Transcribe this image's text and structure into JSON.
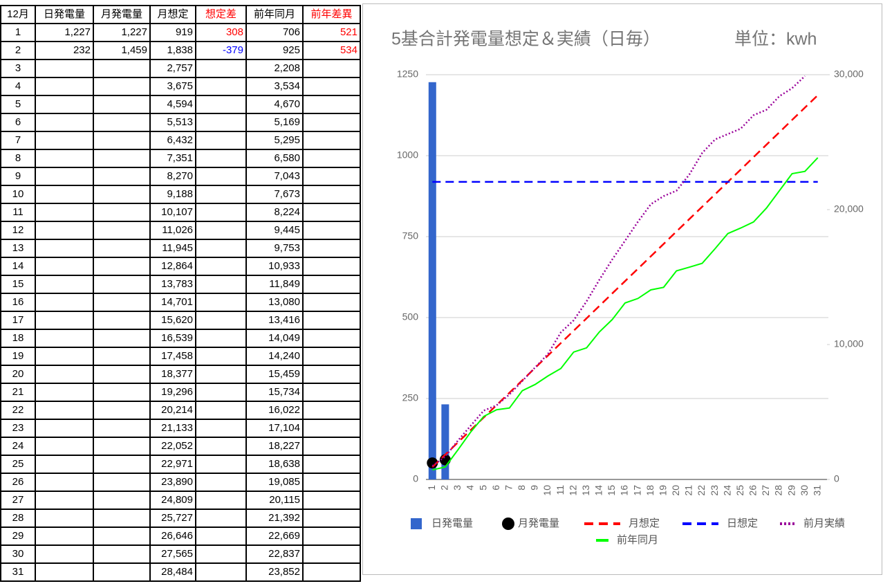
{
  "table": {
    "header": [
      "12月",
      "日発電量",
      "月発電量",
      "月想定",
      "想定差",
      "前年同月",
      "前年差異"
    ],
    "rows": [
      [
        "1",
        "1,227",
        "1,227",
        "919",
        "308",
        "706",
        "521"
      ],
      [
        "2",
        "232",
        "1,459",
        "1,838",
        "-379",
        "925",
        "534"
      ],
      [
        "3",
        null,
        null,
        "2,757",
        null,
        "2,208",
        null
      ],
      [
        "4",
        null,
        null,
        "3,675",
        null,
        "3,534",
        null
      ],
      [
        "5",
        null,
        null,
        "4,594",
        null,
        "4,670",
        null
      ],
      [
        "6",
        null,
        null,
        "5,513",
        null,
        "5,169",
        null
      ],
      [
        "7",
        null,
        null,
        "6,432",
        null,
        "5,295",
        null
      ],
      [
        "8",
        null,
        null,
        "7,351",
        null,
        "6,580",
        null
      ],
      [
        "9",
        null,
        null,
        "8,270",
        null,
        "7,043",
        null
      ],
      [
        "10",
        null,
        null,
        "9,188",
        null,
        "7,673",
        null
      ],
      [
        "11",
        null,
        null,
        "10,107",
        null,
        "8,224",
        null
      ],
      [
        "12",
        null,
        null,
        "11,026",
        null,
        "9,445",
        null
      ],
      [
        "13",
        null,
        null,
        "11,945",
        null,
        "9,753",
        null
      ],
      [
        "14",
        null,
        null,
        "12,864",
        null,
        "10,933",
        null
      ],
      [
        "15",
        null,
        null,
        "13,783",
        null,
        "11,849",
        null
      ],
      [
        "16",
        null,
        null,
        "14,701",
        null,
        "13,080",
        null
      ],
      [
        "17",
        null,
        null,
        "15,620",
        null,
        "13,416",
        null
      ],
      [
        "18",
        null,
        null,
        "16,539",
        null,
        "14,049",
        null
      ],
      [
        "19",
        null,
        null,
        "17,458",
        null,
        "14,240",
        null
      ],
      [
        "20",
        null,
        null,
        "18,377",
        null,
        "15,459",
        null
      ],
      [
        "21",
        null,
        null,
        "19,296",
        null,
        "15,734",
        null
      ],
      [
        "22",
        null,
        null,
        "20,214",
        null,
        "16,022",
        null
      ],
      [
        "23",
        null,
        null,
        "21,133",
        null,
        "17,104",
        null
      ],
      [
        "24",
        null,
        null,
        "22,052",
        null,
        "18,227",
        null
      ],
      [
        "25",
        null,
        null,
        "22,971",
        null,
        "18,638",
        null
      ],
      [
        "26",
        null,
        null,
        "23,890",
        null,
        "19,085",
        null
      ],
      [
        "27",
        null,
        null,
        "24,809",
        null,
        "20,115",
        null
      ],
      [
        "28",
        null,
        null,
        "25,727",
        null,
        "21,392",
        null
      ],
      [
        "29",
        null,
        null,
        "26,646",
        null,
        "22,669",
        null
      ],
      [
        "30",
        null,
        null,
        "27,565",
        null,
        "22,837",
        null
      ],
      [
        "31",
        null,
        null,
        "28,484",
        null,
        "23,852",
        null
      ]
    ]
  },
  "chart_data": {
    "type": "combo",
    "title": "5基合計発電量想定＆実績（日毎）",
    "subtitle": "単位：kwh",
    "categories": [
      "1",
      "2",
      "3",
      "4",
      "5",
      "6",
      "7",
      "8",
      "9",
      "10",
      "11",
      "12",
      "13",
      "14",
      "15",
      "16",
      "17",
      "18",
      "19",
      "20",
      "21",
      "22",
      "23",
      "24",
      "25",
      "26",
      "27",
      "28",
      "29",
      "30",
      "31"
    ],
    "ylim": [
      0,
      1250
    ],
    "yticks": [
      0,
      250,
      500,
      750,
      1000,
      1250
    ],
    "y2lim": [
      0,
      30000
    ],
    "y2ticks": [
      0,
      {
        "value": 10000,
        "label": "10,000"
      },
      {
        "value": 20000,
        "label": "20,000"
      },
      {
        "value": 30000,
        "label": "30,000"
      }
    ],
    "grid": true,
    "series": [
      {
        "name": "日発電量",
        "type": "bar",
        "color": "#3366cc",
        "values": [
          1227,
          232,
          null,
          null,
          null,
          null,
          null,
          null,
          null,
          null,
          null,
          null,
          null,
          null,
          null,
          null,
          null,
          null,
          null,
          null,
          null,
          null,
          null,
          null,
          null,
          null,
          null,
          null,
          null,
          null,
          null
        ]
      },
      {
        "name": "月発電量",
        "type": "dot",
        "axis": "y2",
        "color": "#000000",
        "values": [
          1227,
          1459,
          null,
          null,
          null,
          null,
          null,
          null,
          null,
          null,
          null,
          null,
          null,
          null,
          null,
          null,
          null,
          null,
          null,
          null,
          null,
          null,
          null,
          null,
          null,
          null,
          null,
          null,
          null,
          null,
          null
        ]
      },
      {
        "name": "月想定",
        "type": "line",
        "dash": "dashed",
        "axis": "y2",
        "color": "#ff0000",
        "values": [
          919,
          1838,
          2757,
          3675,
          4594,
          5513,
          6432,
          7351,
          8270,
          9188,
          10107,
          11026,
          11945,
          12864,
          13783,
          14701,
          15620,
          16539,
          17458,
          18377,
          19296,
          20214,
          21133,
          22052,
          22971,
          23890,
          24809,
          25727,
          26646,
          27565,
          28484
        ]
      },
      {
        "name": "日想定",
        "type": "line",
        "dash": "dashed",
        "color": "#0000ff",
        "values": [
          919,
          919,
          919,
          919,
          919,
          919,
          919,
          919,
          919,
          919,
          919,
          919,
          919,
          919,
          919,
          919,
          919,
          919,
          919,
          919,
          919,
          919,
          919,
          919,
          919,
          919,
          919,
          919,
          919,
          919,
          919
        ]
      },
      {
        "name": "前月実績",
        "type": "line",
        "dash": "dotted",
        "axis": "y2",
        "color": "#990099",
        "values": [
          1000,
          1700,
          2900,
          4000,
          5100,
          5500,
          6300,
          7300,
          8300,
          9300,
          10900,
          11800,
          13200,
          14800,
          16300,
          17700,
          19100,
          20400,
          21000,
          21400,
          22600,
          24200,
          25200,
          25600,
          26000,
          27000,
          27400,
          28400,
          29000,
          29900,
          null
        ]
      },
      {
        "name": "前年同月",
        "type": "line",
        "dash": "solid",
        "axis": "y2",
        "color": "#00ff00",
        "values": [
          706,
          925,
          2208,
          3534,
          4670,
          5169,
          5295,
          6580,
          7043,
          7673,
          8224,
          9445,
          9753,
          10933,
          11849,
          13080,
          13416,
          14049,
          14240,
          15459,
          15734,
          16022,
          17104,
          18227,
          18638,
          19085,
          20115,
          21392,
          22669,
          22837,
          23852
        ]
      }
    ]
  }
}
